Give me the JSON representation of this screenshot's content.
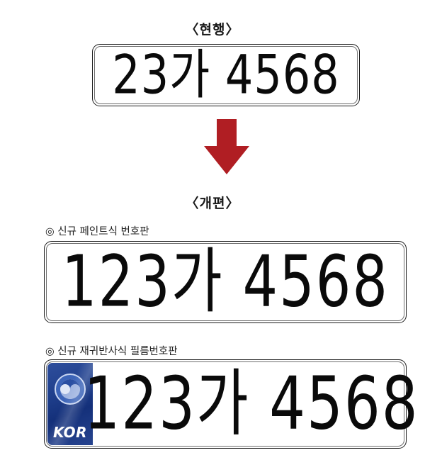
{
  "current": {
    "heading": "〈현행〉",
    "plate_number": "23가 4568"
  },
  "revised": {
    "heading": "〈개편〉",
    "paint_plate": {
      "caption": "◎ 신규 페인트식 번호판",
      "plate_number": "123가 4568"
    },
    "film_plate": {
      "caption": "◎ 신규 재귀반사식 필름번호판",
      "plate_number": "123가 4568",
      "band_text": "KOR",
      "emblem_icon": "taegeuk-emblem-icon"
    }
  },
  "arrow_icon": "down-arrow-icon",
  "colors": {
    "arrow": "#b01e23",
    "kor_band": "#1f3f8c",
    "plate_text": "#0a0a0a"
  }
}
